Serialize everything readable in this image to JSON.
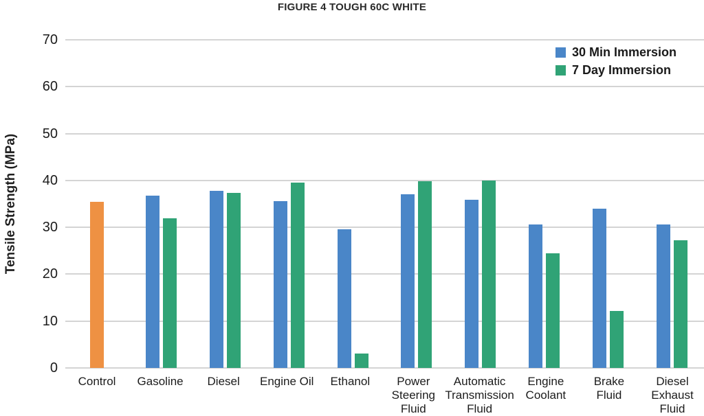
{
  "chart_data": {
    "type": "bar",
    "title": "FIGURE 4 TOUGH 60C WHITE",
    "ylabel": "Tensile Strength (MPa)",
    "xlabel": "",
    "ylim": [
      0,
      70
    ],
    "ytick_step": 10,
    "yticks": [
      0,
      10,
      20,
      30,
      40,
      50,
      60,
      70
    ],
    "grid": true,
    "gridline_color": "#d4d4d4",
    "legend_position": "top-right",
    "categories": [
      {
        "label": "Control",
        "lines": [
          "Control"
        ]
      },
      {
        "label": "Gasoline",
        "lines": [
          "Gasoline"
        ]
      },
      {
        "label": "Diesel",
        "lines": [
          "Diesel"
        ]
      },
      {
        "label": "Engine Oil",
        "lines": [
          "Engine Oil"
        ]
      },
      {
        "label": "Ethanol",
        "lines": [
          "Ethanol"
        ]
      },
      {
        "label": "Power Steering Fluid",
        "lines": [
          "Power",
          "Steering",
          "Fluid"
        ]
      },
      {
        "label": "Automatic Transmission Fluid",
        "lines": [
          "Automatic",
          "Transmission",
          "Fluid"
        ]
      },
      {
        "label": "Engine Coolant",
        "lines": [
          "Engine",
          "Coolant"
        ]
      },
      {
        "label": "Brake Fluid",
        "lines": [
          "Brake",
          "Fluid"
        ]
      },
      {
        "label": "Diesel Exhaust Fluid",
        "lines": [
          "Diesel",
          "Exhaust",
          "Fluid"
        ]
      }
    ],
    "series": [
      {
        "name": "30 Min Immersion",
        "color": "#4A86C8",
        "values": [
          null,
          36.7,
          37.8,
          35.6,
          29.6,
          37.0,
          35.9,
          30.6,
          34.0,
          30.6
        ]
      },
      {
        "name": "7 Day Immersion",
        "color": "#30A376",
        "values": [
          null,
          32.0,
          37.4,
          39.5,
          3.1,
          39.8,
          40.0,
          24.5,
          12.2,
          27.2
        ]
      }
    ],
    "control_bar": {
      "category": "Control",
      "value": 35.4,
      "color": "#EE9143"
    },
    "legend": [
      {
        "label": "30 Min Immersion",
        "color": "#4A86C8"
      },
      {
        "label": "7 Day Immersion",
        "color": "#30A376"
      }
    ]
  }
}
